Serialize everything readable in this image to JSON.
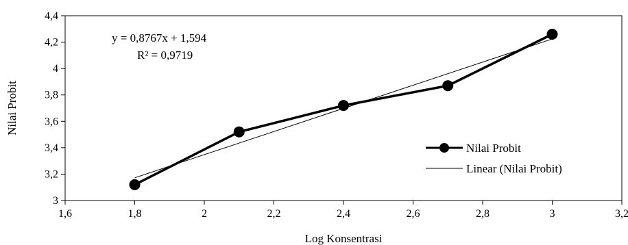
{
  "chart_data": {
    "type": "line",
    "title": "",
    "xlabel": "Log Konsentrasi",
    "ylabel": "Nilai Probit",
    "xlim": [
      1.6,
      3.2
    ],
    "ylim": [
      3,
      4.4
    ],
    "x_ticks": [
      1.6,
      1.8,
      2.0,
      2.2,
      2.4,
      2.6,
      2.8,
      3.0,
      3.2
    ],
    "x_tick_labels": [
      "1,6",
      "1,8",
      "2",
      "2,2",
      "2,4",
      "2,6",
      "2,8",
      "3",
      "3,2"
    ],
    "y_ticks": [
      3.0,
      3.2,
      3.4,
      3.6,
      3.8,
      4.0,
      4.2,
      4.4
    ],
    "y_tick_labels": [
      "3",
      "3,2",
      "3,4",
      "3,6",
      "3,8",
      "4",
      "4,2",
      "4,4"
    ],
    "grid": false,
    "legend_position": "bottom-right",
    "series": [
      {
        "name": "Nilai Probit",
        "color": "#000000",
        "marker": "circle",
        "x": [
          1.8,
          2.1,
          2.4,
          2.7,
          3.0
        ],
        "y": [
          3.12,
          3.52,
          3.72,
          3.87,
          4.26
        ]
      }
    ],
    "trendline": {
      "name": "Linear (Nilai Probit)",
      "color": "#000000",
      "slope": 0.8767,
      "intercept": 1.594,
      "x_range": [
        1.8,
        3.0
      ]
    },
    "annotations": {
      "equation": "y = 0,8767x + 1,594",
      "r_squared": "R² = 0,9719"
    }
  }
}
